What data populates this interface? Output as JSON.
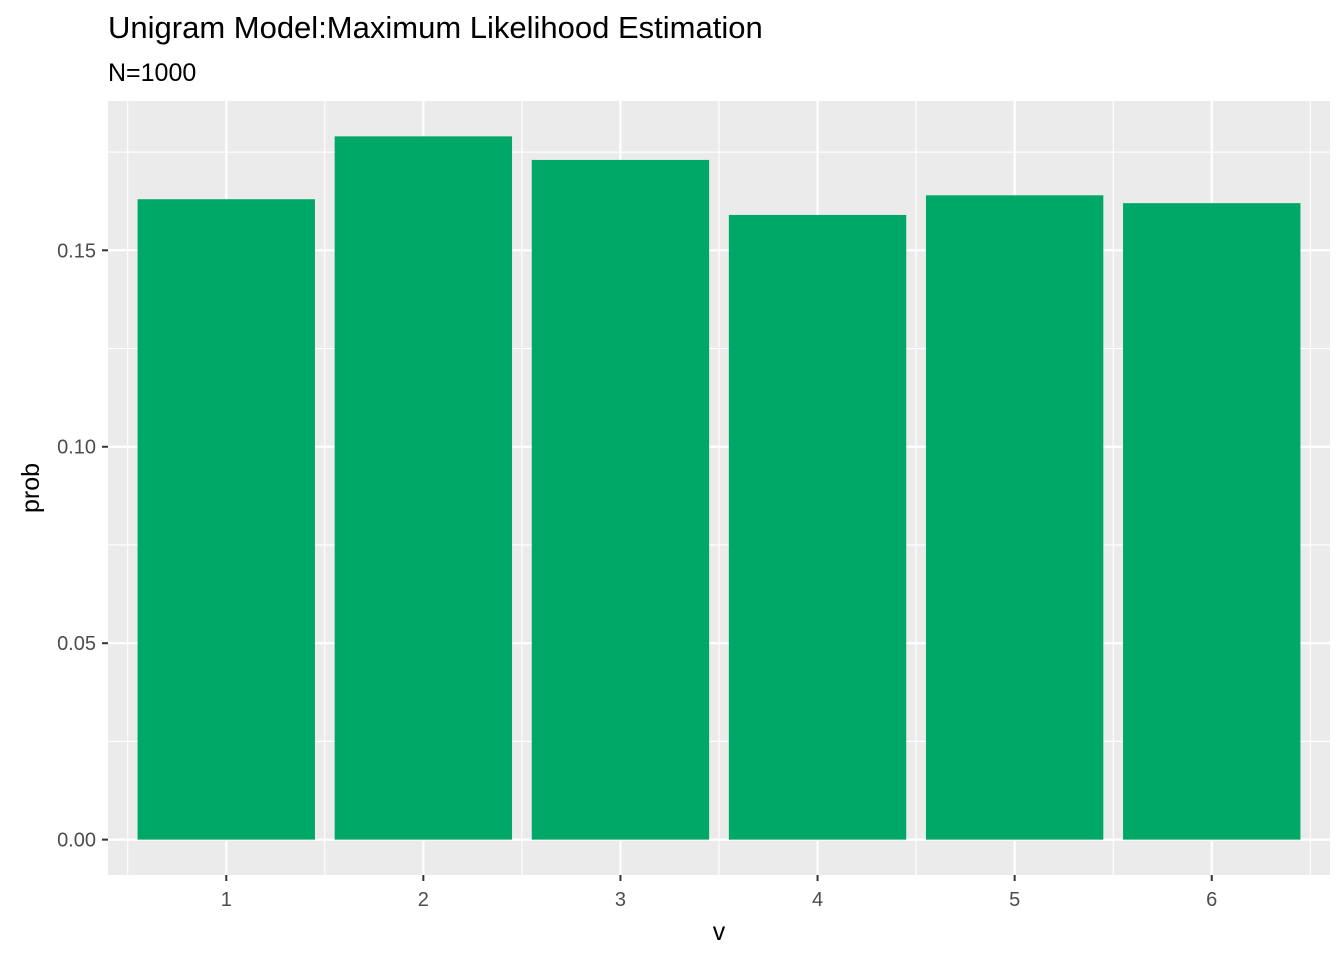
{
  "chart_data": {
    "type": "bar",
    "title": "Unigram Model:Maximum Likelihood Estimation",
    "subtitle": "N=1000",
    "xlabel": "v",
    "ylabel": "prob",
    "categories": [
      "1",
      "2",
      "3",
      "4",
      "5",
      "6"
    ],
    "values": [
      0.163,
      0.179,
      0.173,
      0.159,
      0.164,
      0.162
    ],
    "ylim": [
      -0.009,
      0.188
    ],
    "yticks": [
      0.0,
      0.05,
      0.1,
      0.15
    ],
    "ytick_labels": [
      "0.00",
      "0.05",
      "0.10",
      "0.15"
    ],
    "grid": true,
    "legend": "none",
    "colors": {
      "bar": "#00A868",
      "panel": "#EBEBEB",
      "grid": "#FFFFFF",
      "tick_text": "#4D4D4D"
    }
  }
}
